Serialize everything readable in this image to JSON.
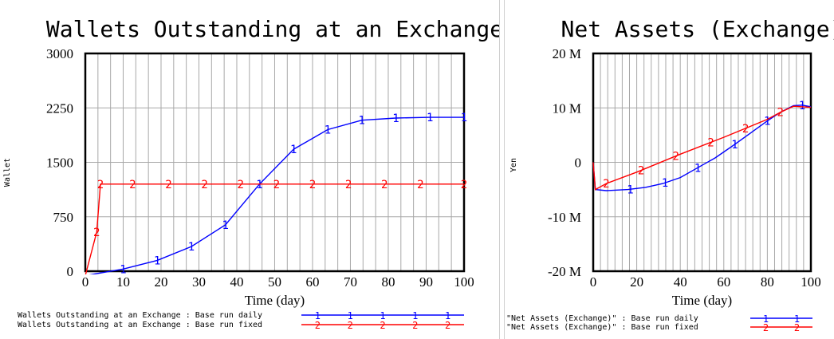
{
  "chart_data": [
    {
      "type": "line",
      "title": "Wallets Outstanding at an Exchange",
      "xlabel": "Time (day)",
      "ylabel": "Wallet",
      "xlim": [
        0,
        100
      ],
      "ylim": [
        0,
        3000
      ],
      "x_ticks": [
        "0",
        "10",
        "20",
        "30",
        "40",
        "50",
        "60",
        "70",
        "80",
        "90",
        "100"
      ],
      "y_ticks": [
        "3000",
        "2250",
        "1500",
        "750",
        "0"
      ],
      "grid": true,
      "legend_position": "bottom",
      "series": [
        {
          "name": "Wallets Outstanding at an Exchange : Base run daily",
          "color": "#0000ff",
          "marker": "1",
          "x": [
            0,
            10,
            19,
            28,
            37,
            46,
            55,
            64,
            73,
            82,
            91,
            100
          ],
          "y": [
            -60,
            30,
            150,
            340,
            640,
            1200,
            1680,
            1950,
            2080,
            2110,
            2120,
            2120
          ]
        },
        {
          "name": "Wallets Outstanding at an Exchange : Base run fixed",
          "color": "#ff0000",
          "marker": "2",
          "x": [
            0,
            3,
            4,
            12.5,
            22,
            31.5,
            41,
            50.5,
            60,
            69.5,
            79,
            88.5,
            100
          ],
          "y": [
            -60,
            540,
            1200,
            1200,
            1200,
            1200,
            1200,
            1200,
            1200,
            1200,
            1200,
            1200,
            1200
          ]
        }
      ]
    },
    {
      "type": "line",
      "title": "Net Assets (Exchange)",
      "xlabel": "Time (day)",
      "ylabel": "Yen",
      "xlim": [
        0,
        100
      ],
      "ylim": [
        -20000000,
        20000000
      ],
      "x_ticks": [
        "0",
        "20",
        "40",
        "60",
        "80",
        "100"
      ],
      "y_ticks": [
        "20 M",
        "10 M",
        "0",
        "-10 M",
        "-20 M"
      ],
      "grid": true,
      "legend_position": "bottom",
      "series": [
        {
          "name": "\"Net Assets (Exchange)\" : Base run daily",
          "color": "#0000ff",
          "marker": "1",
          "x": [
            0,
            1,
            6,
            16,
            24,
            32,
            40,
            48,
            56,
            64,
            72,
            80,
            86,
            92,
            96,
            100
          ],
          "y": [
            0,
            -5000000,
            -5200000,
            -5000000,
            -4600000,
            -3900000,
            -2800000,
            -1000000,
            800000,
            3000000,
            5300000,
            7600000,
            9200000,
            10400000,
            10500000,
            10200000
          ],
          "marker_x": [
            17,
            33,
            48,
            65,
            80,
            96
          ]
        },
        {
          "name": "\"Net Assets (Exchange)\" : Base run fixed",
          "color": "#ff0000",
          "marker": "2",
          "x": [
            0,
            1,
            6,
            20,
            40,
            60,
            80,
            86,
            92,
            100
          ],
          "y": [
            0,
            -5000000,
            -3900000,
            -1800000,
            1500000,
            4600000,
            7900000,
            9200000,
            10300000,
            10100000
          ],
          "marker_x": [
            6,
            22,
            38,
            54,
            70,
            86
          ]
        }
      ]
    }
  ]
}
